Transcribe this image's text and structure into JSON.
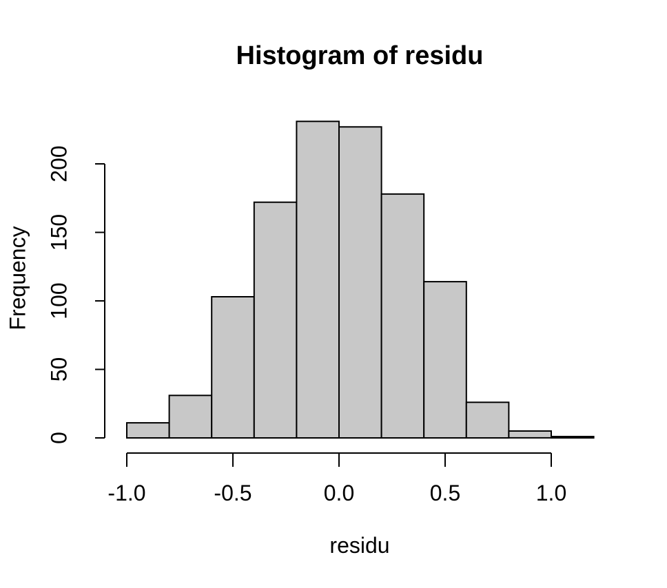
{
  "chart_data": {
    "type": "bar",
    "variant": "histogram",
    "title": "Histogram of residu",
    "xlabel": "residu",
    "ylabel": "Frequency",
    "bin_start": -1.0,
    "bin_width": 0.2,
    "bin_edges": [
      -1.0,
      -0.8,
      -0.6,
      -0.4,
      -0.2,
      0.0,
      0.2,
      0.4,
      0.6,
      0.8,
      1.0,
      1.2
    ],
    "counts": [
      11,
      31,
      103,
      172,
      231,
      227,
      178,
      114,
      26,
      5,
      1
    ],
    "x_ticks": [
      {
        "value": -1.0,
        "label": "-1.0"
      },
      {
        "value": -0.5,
        "label": "-0.5"
      },
      {
        "value": 0.0,
        "label": "0.0"
      },
      {
        "value": 0.5,
        "label": "0.5"
      },
      {
        "value": 1.0,
        "label": "1.0"
      }
    ],
    "y_ticks": [
      {
        "value": 0,
        "label": "0"
      },
      {
        "value": 50,
        "label": "50"
      },
      {
        "value": 100,
        "label": "100"
      },
      {
        "value": 150,
        "label": "150"
      },
      {
        "value": 200,
        "label": "200"
      }
    ],
    "xlim": [
      -1.0,
      1.0
    ],
    "ylim": [
      0,
      200
    ],
    "grid": false,
    "legend": false,
    "colors": {
      "bar_fill": "#c8c8c8",
      "bar_stroke": "#000000",
      "axis": "#000000",
      "text": "#000000",
      "background": "#ffffff"
    }
  }
}
